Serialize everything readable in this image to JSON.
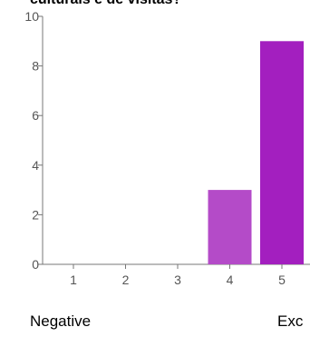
{
  "title": "culturais e de visitas?",
  "footer": {
    "low_label": "Negative",
    "high_label": "Exc"
  },
  "colors": {
    "bar_4": "#b44bc8",
    "bar_5": "#a31fbf",
    "axis": "#777777",
    "tick_text": "#555555"
  },
  "chart_data": {
    "type": "bar",
    "categories": [
      "1",
      "2",
      "3",
      "4",
      "5"
    ],
    "values": [
      0,
      0,
      0,
      3,
      9
    ],
    "title": "culturais e de visitas?",
    "xlabel": "",
    "ylabel": "",
    "ylim": [
      0,
      10
    ],
    "yticks": [
      0,
      2,
      4,
      6,
      8,
      10
    ],
    "grid": false,
    "legend": "none"
  }
}
